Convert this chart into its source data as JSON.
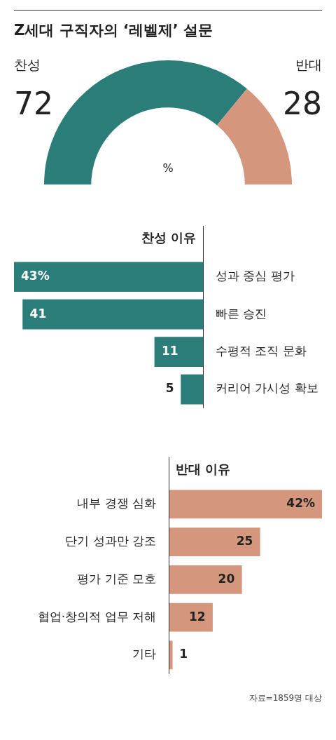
{
  "chart_data": [
    {
      "type": "donut",
      "title": "Z세대 구직자의 ‘레벨제’ 설문",
      "categories": [
        "찬성",
        "반대"
      ],
      "values": [
        72,
        28
      ],
      "colors": [
        "#2a7d78",
        "#d4967c"
      ],
      "data_labels": true,
      "annotations": [
        "%"
      ],
      "legend": false
    },
    {
      "type": "bar",
      "orientation": "horizontal",
      "title": "찬성 이유",
      "categories": [
        "성과 중심 평가",
        "빠른 승진",
        "수평적 조직 문화",
        "커리어 가시성 확보"
      ],
      "values": [
        43,
        41,
        11,
        5
      ],
      "color": "#2a7d78",
      "value_labels": [
        "43%",
        "41",
        "11",
        "5"
      ],
      "xlim": [
        43,
        0
      ],
      "tick_labels": "y",
      "legend": false
    },
    {
      "type": "bar",
      "orientation": "horizontal",
      "title": "반대 이유",
      "categories": [
        "내부 경쟁 심화",
        "단기 성과만 강조",
        "평가 기준 모호",
        "협업·창의적 업무 저해",
        "기타"
      ],
      "values": [
        42,
        25,
        20,
        12,
        1
      ],
      "color": "#d4967c",
      "value_labels": [
        "42%",
        "25",
        "20",
        "12",
        "1"
      ],
      "xlim": [
        0,
        42
      ],
      "tick_labels": "y",
      "legend": false,
      "annotations": [
        "자료=1859명 대상"
      ]
    }
  ]
}
